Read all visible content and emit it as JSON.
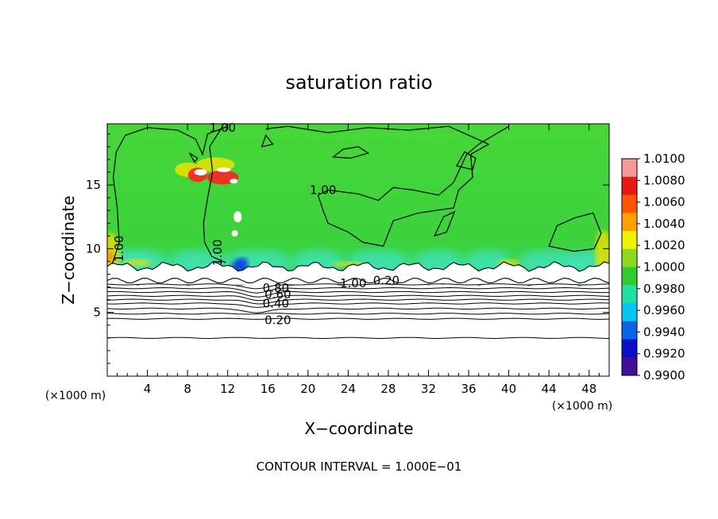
{
  "chart_data": {
    "type": "heatmap",
    "title": "saturation ratio",
    "xlabel": "X−coordinate",
    "ylabel": "Z−coordinate",
    "x_unit": "(×1000 m)",
    "y_unit": "(×1000 m)",
    "xlim": [
      0,
      50
    ],
    "ylim": [
      0,
      19.8
    ],
    "x_ticks": [
      4,
      8,
      12,
      16,
      20,
      24,
      28,
      32,
      36,
      40,
      44,
      48
    ],
    "x_tick_labels": [
      "4",
      "8",
      "12",
      "16",
      "20",
      "24",
      "28",
      "32",
      "36",
      "40",
      "44",
      "48"
    ],
    "y_ticks": [
      5,
      10,
      15
    ],
    "y_tick_labels": [
      "5",
      "10",
      "15"
    ],
    "colorbar": {
      "range": [
        0.99,
        1.01
      ],
      "labels": [
        "1.0100",
        "1.0080",
        "1.0060",
        "1.0040",
        "1.0020",
        "1.0000",
        "0.9980",
        "0.9960",
        "0.9940",
        "0.9920",
        "0.9900"
      ],
      "colors": [
        "#f7a0a0",
        "#ff1e1e",
        "#ff5a00",
        "#ff9c00",
        "#fff000",
        "#a0e000",
        "#28c828",
        "#00d890",
        "#00a8f0",
        "#0050f0",
        "#1808a0"
      ],
      "shaded_colors": [
        "#f59a9a",
        "#e81818",
        "#ff5500",
        "#ffa000",
        "#f0f000",
        "#90d820",
        "#30cc30",
        "#20e0a0",
        "#00c8f0",
        "#0a64e8",
        "#0a10c8",
        "#40109a"
      ]
    },
    "field_colors": {
      "background": "#3cd23c",
      "upper": "#46d638",
      "cyan": "#40e6c8",
      "yellow": "#e6e000",
      "red": "#ff2020",
      "orange": "#ff8800",
      "blue": "#1040e8"
    },
    "contours": [
      {
        "level": "1.00",
        "label_x": 21.5,
        "label_y": 14.6
      },
      {
        "level": "1.00",
        "label_x": 11.0,
        "label_y": 9.7
      },
      {
        "level": "1.00",
        "label_x": 11.5,
        "label_y": 19.5
      },
      {
        "level": "1.00",
        "label_x": 1.2,
        "label_y": 10.0
      },
      {
        "level": "1.00",
        "label_x": 24.5,
        "label_y": 7.3
      },
      {
        "level": "0.20",
        "label_x": 27.8,
        "label_y": 7.5
      },
      {
        "level": "0.80",
        "label_x": 16.8,
        "label_y": 6.9
      },
      {
        "level": "0.60",
        "label_x": 17.0,
        "label_y": 6.4
      },
      {
        "level": "0.40",
        "label_x": 16.8,
        "label_y": 5.7
      },
      {
        "level": "0.20",
        "label_x": 17.0,
        "label_y": 4.4
      }
    ],
    "stable_contour_z": [
      3.0,
      4.5,
      4.9,
      5.3,
      5.7,
      6.0,
      6.3,
      6.6,
      6.9,
      7.2
    ]
  },
  "footer": "CONTOUR INTERVAL = 1.000E−01"
}
